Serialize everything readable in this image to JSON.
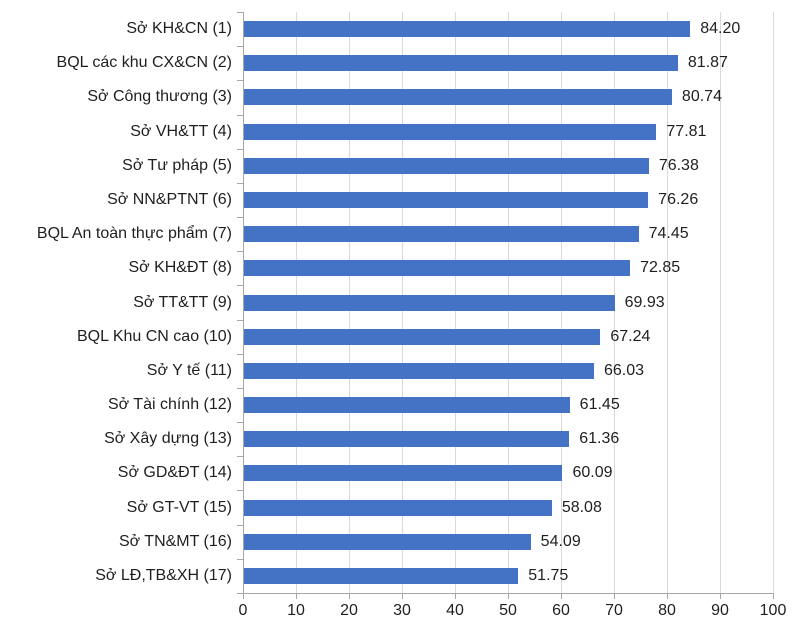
{
  "chart_data": {
    "type": "bar",
    "orientation": "horizontal",
    "title": "",
    "xlabel": "",
    "ylabel": "",
    "categories": [
      "Sở KH&CN (1)",
      "BQL các khu CX&CN (2)",
      "Sở Công thương (3)",
      "Sở VH&TT (4)",
      "Sở Tư pháp (5)",
      "Sở NN&PTNT (6)",
      "BQL An toàn thực phẩm (7)",
      "Sở KH&ĐT (8)",
      "Sở TT&TT (9)",
      "BQL Khu CN cao (10)",
      "Sở Y tế (11)",
      "Sở Tài chính (12)",
      "Sở Xây dựng (13)",
      "Sở GD&ĐT (14)",
      "Sở GT-VT (15)",
      "Sở TN&MT (16)",
      "Sở LĐ,TB&XH (17)"
    ],
    "values": [
      84.2,
      81.87,
      80.74,
      77.81,
      76.38,
      76.26,
      74.45,
      72.85,
      69.93,
      67.24,
      66.03,
      61.45,
      61.36,
      60.09,
      58.08,
      54.09,
      51.75
    ],
    "value_labels": [
      "84.20",
      "81.87",
      "80.74",
      "77.81",
      "76.38",
      "76.26",
      "74.45",
      "72.85",
      "69.93",
      "67.24",
      "66.03",
      "61.45",
      "61.36",
      "60.09",
      "58.08",
      "54.09",
      "51.75"
    ],
    "xlim": [
      0,
      100
    ],
    "x_tick_values": [
      0,
      10,
      20,
      30,
      40,
      50,
      60,
      70,
      80,
      90,
      100
    ],
    "x_tick_labels": [
      "0",
      "10",
      "20",
      "30",
      "40",
      "50",
      "60",
      "70",
      "80",
      "90",
      "100"
    ],
    "grid": "vertical-on",
    "legend": "none",
    "colors": {
      "bar": "#4472C4",
      "gridline": "#D9D9D9",
      "axis": "#A6A6A6",
      "text": "#1f1f1f",
      "background": "#ffffff"
    }
  }
}
